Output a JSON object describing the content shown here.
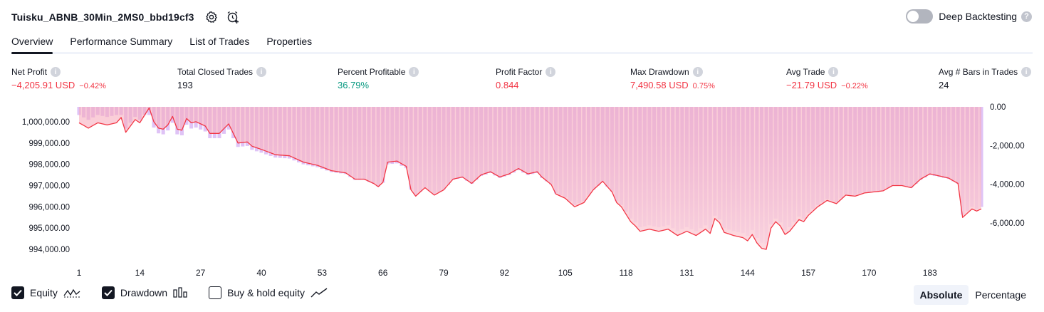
{
  "header": {
    "title": "Tuisku_ABNB_30Min_2MS0_bbd19cf3",
    "icons": [
      "gear-icon",
      "alarm-add-icon"
    ]
  },
  "deep_backtesting": {
    "label": "Deep Backtesting",
    "enabled": false,
    "help": "?"
  },
  "tabs": [
    {
      "label": "Overview",
      "active": true
    },
    {
      "label": "Performance Summary",
      "active": false
    },
    {
      "label": "List of Trades",
      "active": false
    },
    {
      "label": "Properties",
      "active": false
    }
  ],
  "metrics": {
    "net_profit": {
      "label": "Net Profit",
      "value": "−4,205.91 USD",
      "pct": "−0.42%"
    },
    "total_closed_trades": {
      "label": "Total Closed Trades",
      "value": "193"
    },
    "percent_profitable": {
      "label": "Percent Profitable",
      "value": "36.79%"
    },
    "profit_factor": {
      "label": "Profit Factor",
      "value": "0.844"
    },
    "max_drawdown": {
      "label": "Max Drawdown",
      "value": "7,490.58 USD",
      "pct": "0.75%"
    },
    "avg_trade": {
      "label": "Avg Trade",
      "value": "−21.79 USD",
      "pct": "−0.22%"
    },
    "avg_bars": {
      "label": "Avg # Bars in Trades",
      "value": "24"
    }
  },
  "chart_data": {
    "type": "area",
    "x_ticks": [
      "1",
      "14",
      "27",
      "40",
      "53",
      "66",
      "79",
      "92",
      "105",
      "118",
      "131",
      "144",
      "157",
      "170",
      "183"
    ],
    "left_ticks": [
      "1,000,000.00",
      "999,000.00",
      "998,000.00",
      "997,000.00",
      "996,000.00",
      "995,000.00",
      "994,000.00"
    ],
    "right_ticks": [
      "0.00",
      "-2,000.00",
      "-4,000.00",
      "-6,000.00"
    ],
    "left_ylim": [
      993600,
      1000700
    ],
    "right_ylim": [
      -7800,
      0
    ],
    "x_range": [
      1,
      194
    ],
    "equity_keypoints": [
      [
        1,
        999950
      ],
      [
        3,
        999700
      ],
      [
        5,
        999950
      ],
      [
        7,
        999850
      ],
      [
        9,
        999950
      ],
      [
        10,
        1000200
      ],
      [
        11,
        999500
      ],
      [
        12,
        999800
      ],
      [
        13,
        1000100
      ],
      [
        14,
        999950
      ],
      [
        15,
        1000300
      ],
      [
        16,
        1000650
      ],
      [
        17,
        1000000
      ],
      [
        18,
        999700
      ],
      [
        19,
        999650
      ],
      [
        20,
        999850
      ],
      [
        21,
        1000250
      ],
      [
        22,
        999650
      ],
      [
        23,
        999600
      ],
      [
        24,
        1000150
      ],
      [
        25,
        999950
      ],
      [
        26,
        1000000
      ],
      [
        27,
        999900
      ],
      [
        28,
        999800
      ],
      [
        29,
        999450
      ],
      [
        31,
        999450
      ],
      [
        33,
        999900
      ],
      [
        35,
        999000
      ],
      [
        37,
        999050
      ],
      [
        38,
        998850
      ],
      [
        40,
        998700
      ],
      [
        43,
        998450
      ],
      [
        46,
        998400
      ],
      [
        49,
        998100
      ],
      [
        52,
        997950
      ],
      [
        55,
        997700
      ],
      [
        58,
        997600
      ],
      [
        60,
        997300
      ],
      [
        62,
        997300
      ],
      [
        64,
        997100
      ],
      [
        65,
        996950
      ],
      [
        66,
        997150
      ],
      [
        67,
        998100
      ],
      [
        69,
        998150
      ],
      [
        71,
        997900
      ],
      [
        72,
        996800
      ],
      [
        73,
        996500
      ],
      [
        75,
        996900
      ],
      [
        77,
        996550
      ],
      [
        79,
        996800
      ],
      [
        81,
        997300
      ],
      [
        83,
        997400
      ],
      [
        85,
        997100
      ],
      [
        87,
        997500
      ],
      [
        89,
        997650
      ],
      [
        91,
        997400
      ],
      [
        93,
        997550
      ],
      [
        95,
        997800
      ],
      [
        97,
        997550
      ],
      [
        99,
        997650
      ],
      [
        100,
        997400
      ],
      [
        102,
        997050
      ],
      [
        103,
        996600
      ],
      [
        105,
        996400
      ],
      [
        107,
        996000
      ],
      [
        109,
        996200
      ],
      [
        111,
        996800
      ],
      [
        113,
        997200
      ],
      [
        115,
        996700
      ],
      [
        116,
        996200
      ],
      [
        117,
        996000
      ],
      [
        118,
        995650
      ],
      [
        119,
        995300
      ],
      [
        120,
        995100
      ],
      [
        121,
        994850
      ],
      [
        123,
        994950
      ],
      [
        125,
        994850
      ],
      [
        127,
        994950
      ],
      [
        129,
        994650
      ],
      [
        131,
        994850
      ],
      [
        133,
        994650
      ],
      [
        135,
        994950
      ],
      [
        136,
        994750
      ],
      [
        137,
        995450
      ],
      [
        138,
        995250
      ],
      [
        139,
        994800
      ],
      [
        141,
        994650
      ],
      [
        143,
        994550
      ],
      [
        144,
        994400
      ],
      [
        145,
        994700
      ],
      [
        146,
        994300
      ],
      [
        147,
        994050
      ],
      [
        148,
        994000
      ],
      [
        149,
        995000
      ],
      [
        150,
        995300
      ],
      [
        151,
        995100
      ],
      [
        152,
        994700
      ],
      [
        153,
        994850
      ],
      [
        155,
        995400
      ],
      [
        156,
        995300
      ],
      [
        157,
        995600
      ],
      [
        159,
        996000
      ],
      [
        161,
        996300
      ],
      [
        163,
        996150
      ],
      [
        165,
        996550
      ],
      [
        167,
        996500
      ],
      [
        169,
        996650
      ],
      [
        171,
        996700
      ],
      [
        173,
        996750
      ],
      [
        175,
        997000
      ],
      [
        177,
        997000
      ],
      [
        179,
        996900
      ],
      [
        181,
        997300
      ],
      [
        183,
        997550
      ],
      [
        185,
        997450
      ],
      [
        187,
        997350
      ],
      [
        189,
        997100
      ],
      [
        190,
        995500
      ],
      [
        191,
        995700
      ],
      [
        192,
        995900
      ],
      [
        193,
        995800
      ],
      [
        194,
        995900
      ]
    ],
    "buyhold_enabled": false
  },
  "footer": {
    "equity": {
      "label": "Equity",
      "checked": true
    },
    "drawdown": {
      "label": "Drawdown",
      "checked": true
    },
    "buy_hold": {
      "label": "Buy & hold equity",
      "checked": false
    },
    "scale_absolute": "Absolute",
    "scale_percentage": "Percentage",
    "active_scale": "Absolute"
  },
  "colors": {
    "equity_line": "#f23645",
    "equity_up": "#089981",
    "drawdown_bar": "#d9b8f5",
    "equity_fill_top": "#f7a7b8",
    "equity_fill_bottom": "#fcd6dd",
    "accent": "#131722"
  }
}
